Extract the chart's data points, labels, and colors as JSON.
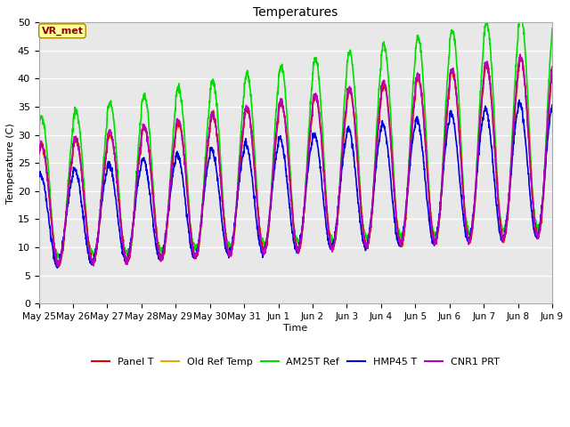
{
  "title": "Temperatures",
  "xlabel": "Time",
  "ylabel": "Temperature (C)",
  "ylim": [
    0,
    50
  ],
  "annotation": "VR_met",
  "outer_bg": "#ffffff",
  "plot_bg_color": "#e8e8e8",
  "grid_color": "#ffffff",
  "series": {
    "panel_t": {
      "label": "Panel T",
      "color": "#dd0000",
      "lw": 1.2
    },
    "old_ref": {
      "label": "Old Ref Temp",
      "color": "#ddaa00",
      "lw": 1.2
    },
    "am25t_ref": {
      "label": "AM25T Ref",
      "color": "#00dd00",
      "lw": 1.2
    },
    "hmp45_t": {
      "label": "HMP45 T",
      "color": "#0000dd",
      "lw": 1.2
    },
    "cnr1_prt": {
      "label": "CNR1 PRT",
      "color": "#bb00bb",
      "lw": 1.2
    }
  },
  "x_tick_labels": [
    "May 25",
    "May 26",
    "May 27",
    "May 28",
    "May 29",
    "May 30",
    "May 31",
    "Jun 1",
    "Jun 2",
    "Jun 3",
    "Jun 4",
    "Jun 5",
    "Jun 6",
    "Jun 7",
    "Jun 8",
    "Jun 9"
  ],
  "y_ticks": [
    0,
    5,
    10,
    15,
    20,
    25,
    30,
    35,
    40,
    45,
    50
  ],
  "figsize": [
    6.4,
    4.8
  ],
  "dpi": 100
}
